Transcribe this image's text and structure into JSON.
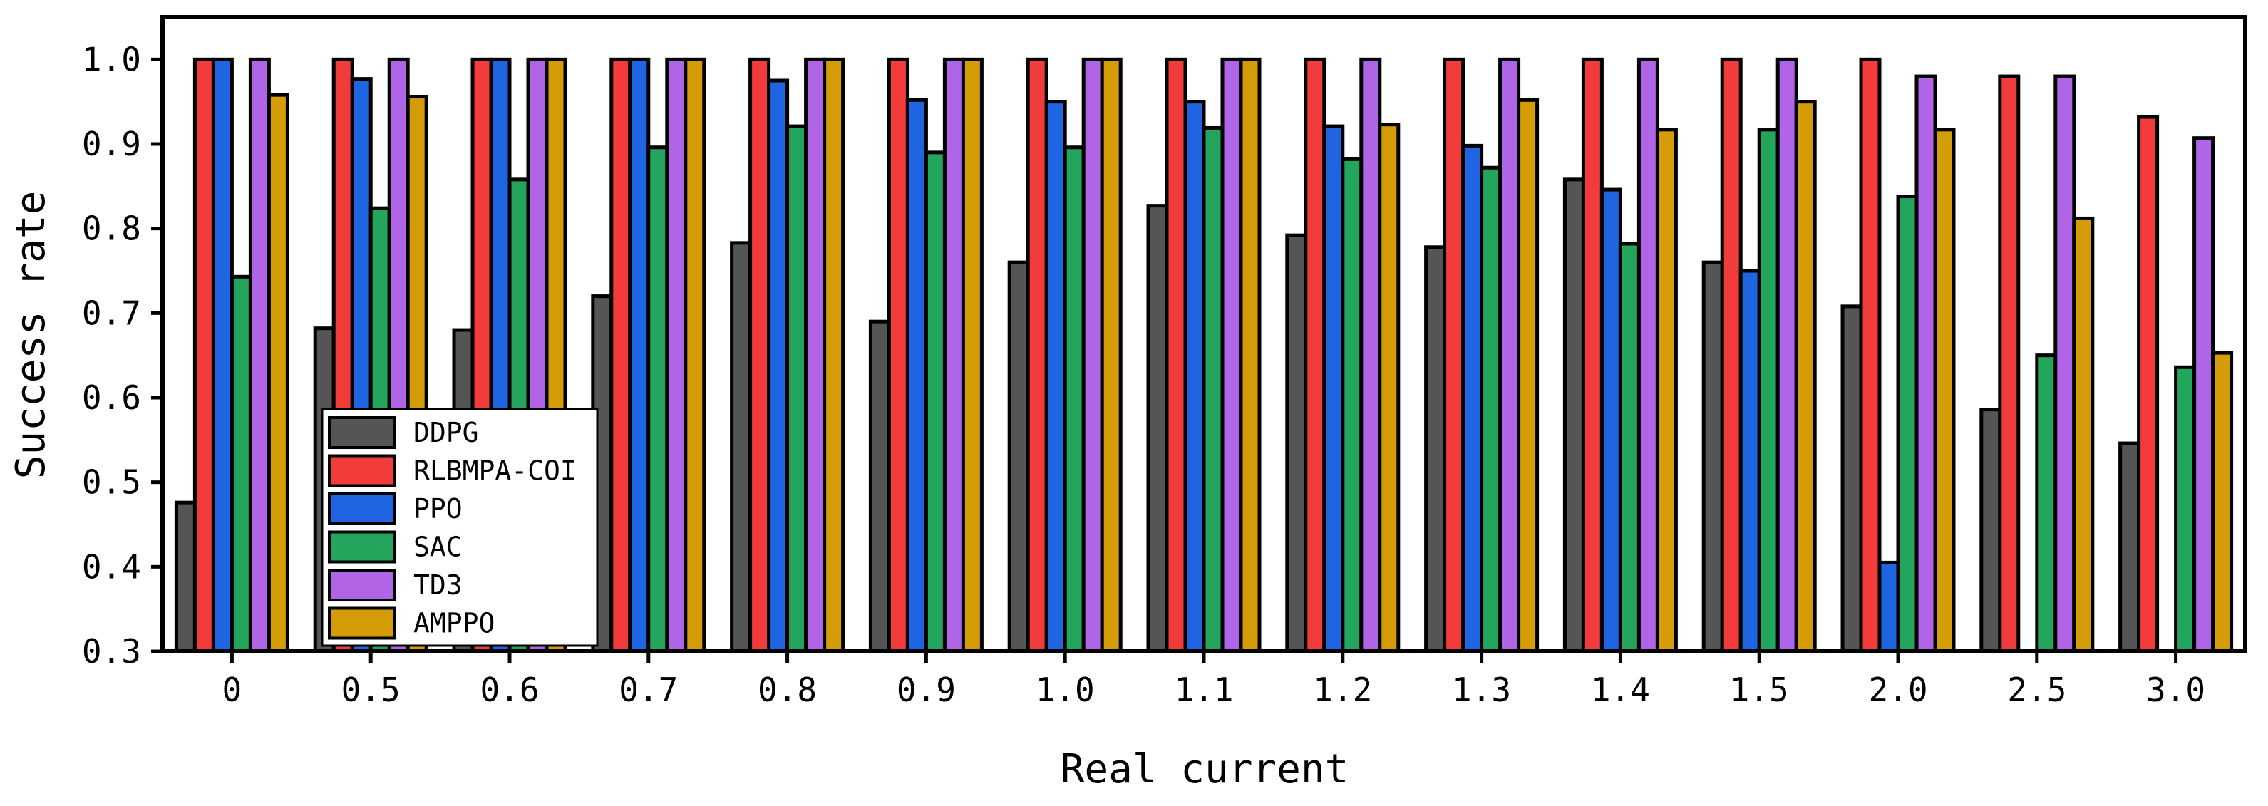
{
  "chart_data": {
    "type": "bar",
    "title": "",
    "xlabel": "Real current",
    "ylabel": "Success rate",
    "ylim": [
      0.3,
      1.05
    ],
    "yticks": [
      "0.3",
      "0.4",
      "0.5",
      "0.6",
      "0.7",
      "0.8",
      "0.9",
      "1.0"
    ],
    "categories": [
      "0",
      "0.5",
      "0.6",
      "0.7",
      "0.8",
      "0.9",
      "1.0",
      "1.1",
      "1.2",
      "1.3",
      "1.4",
      "1.5",
      "2.0",
      "2.5",
      "3.0"
    ],
    "legend_position": "bottom-left",
    "series": [
      {
        "name": "DDPG",
        "color": "#555555",
        "values": [
          0.476,
          0.682,
          0.68,
          0.72,
          0.783,
          0.69,
          0.76,
          0.827,
          0.792,
          0.778,
          0.858,
          0.76,
          0.708,
          0.586,
          0.546
        ]
      },
      {
        "name": "RLBMPA-COI",
        "color": "#f23c3c",
        "values": [
          1.0,
          1.0,
          1.0,
          1.0,
          1.0,
          1.0,
          1.0,
          1.0,
          1.0,
          1.0,
          1.0,
          1.0,
          1.0,
          0.98,
          0.932
        ]
      },
      {
        "name": "PPO",
        "color": "#1f64e0",
        "values": [
          1.0,
          0.977,
          1.0,
          1.0,
          0.975,
          0.952,
          0.95,
          0.95,
          0.921,
          0.898,
          0.846,
          0.75,
          0.405,
          null,
          null
        ]
      },
      {
        "name": "SAC",
        "color": "#23a55d",
        "values": [
          0.743,
          0.824,
          0.858,
          0.896,
          0.921,
          0.89,
          0.896,
          0.919,
          0.882,
          0.872,
          0.782,
          0.917,
          0.838,
          0.65,
          0.636
        ]
      },
      {
        "name": "TD3",
        "color": "#b065e6",
        "values": [
          1.0,
          1.0,
          1.0,
          1.0,
          1.0,
          1.0,
          1.0,
          1.0,
          1.0,
          1.0,
          1.0,
          1.0,
          0.98,
          0.98,
          0.907
        ]
      },
      {
        "name": "AMPPO",
        "color": "#d49c06",
        "values": [
          0.958,
          0.956,
          1.0,
          1.0,
          1.0,
          1.0,
          1.0,
          1.0,
          0.923,
          0.952,
          0.917,
          0.95,
          0.917,
          0.812,
          0.653
        ]
      }
    ]
  }
}
